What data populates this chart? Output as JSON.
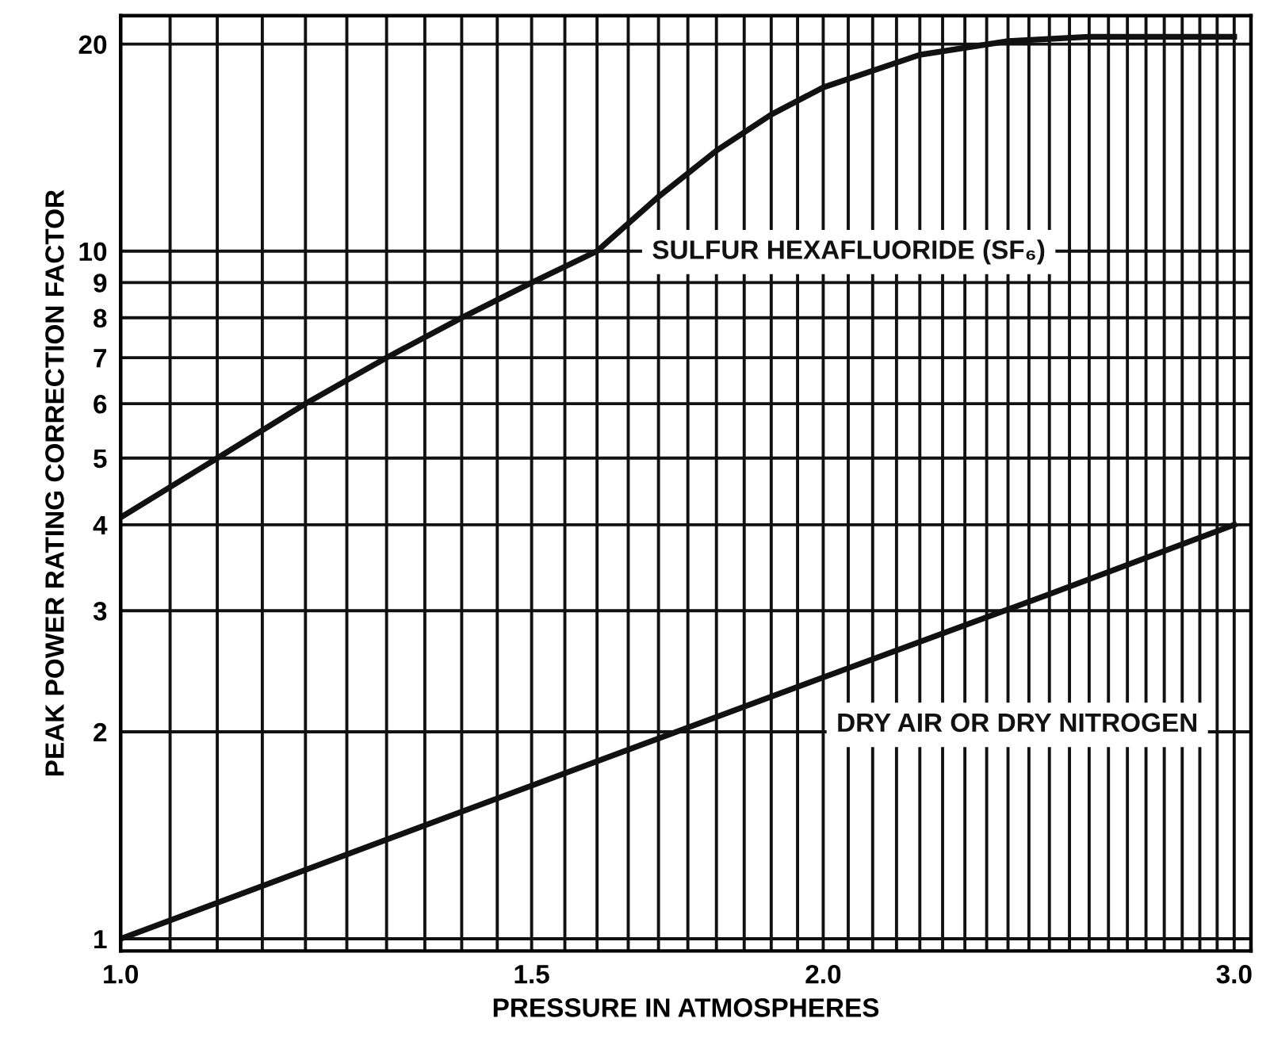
{
  "chart_data": {
    "type": "line",
    "xlabel": "PRESSURE IN ATMOSPHERES",
    "ylabel": "PEAK POWER RATING CORRECTION FACTOR",
    "log": "xy",
    "grid": true,
    "legend": false,
    "marker": "none",
    "line_style": "solid",
    "xlim": [
      1.0,
      3.05
    ],
    "ylim": [
      0.96,
      22
    ],
    "xticks": [
      {
        "value": 1.0,
        "label": "1.0"
      },
      {
        "value": 1.05,
        "label": null
      },
      {
        "value": 1.1,
        "label": null
      },
      {
        "value": 1.15,
        "label": null
      },
      {
        "value": 1.2,
        "label": null
      },
      {
        "value": 1.25,
        "label": null
      },
      {
        "value": 1.3,
        "label": null
      },
      {
        "value": 1.35,
        "label": null
      },
      {
        "value": 1.4,
        "label": null
      },
      {
        "value": 1.45,
        "label": null
      },
      {
        "value": 1.5,
        "label": "1.5"
      },
      {
        "value": 1.55,
        "label": null
      },
      {
        "value": 1.6,
        "label": null
      },
      {
        "value": 1.65,
        "label": null
      },
      {
        "value": 1.7,
        "label": null
      },
      {
        "value": 1.75,
        "label": null
      },
      {
        "value": 1.8,
        "label": null
      },
      {
        "value": 1.85,
        "label": null
      },
      {
        "value": 1.9,
        "label": null
      },
      {
        "value": 1.95,
        "label": null
      },
      {
        "value": 2.0,
        "label": "2.0"
      },
      {
        "value": 2.05,
        "label": null
      },
      {
        "value": 2.1,
        "label": null
      },
      {
        "value": 2.15,
        "label": null
      },
      {
        "value": 2.2,
        "label": null
      },
      {
        "value": 2.25,
        "label": null
      },
      {
        "value": 2.3,
        "label": null
      },
      {
        "value": 2.35,
        "label": null
      },
      {
        "value": 2.4,
        "label": null
      },
      {
        "value": 2.45,
        "label": null
      },
      {
        "value": 2.5,
        "label": null
      },
      {
        "value": 2.55,
        "label": null
      },
      {
        "value": 2.6,
        "label": null
      },
      {
        "value": 2.65,
        "label": null
      },
      {
        "value": 2.7,
        "label": null
      },
      {
        "value": 2.75,
        "label": null
      },
      {
        "value": 2.8,
        "label": null
      },
      {
        "value": 2.85,
        "label": null
      },
      {
        "value": 2.9,
        "label": null
      },
      {
        "value": 2.95,
        "label": null
      },
      {
        "value": 3.0,
        "label": "3.0"
      }
    ],
    "yticks": [
      1,
      2,
      3,
      4,
      5,
      6,
      7,
      8,
      9,
      10,
      20
    ],
    "series": [
      {
        "name": "SULFUR HEXAFLUORIDE (SF₆)",
        "color": "#111111",
        "x": [
          1.0,
          1.1,
          1.2,
          1.3,
          1.4,
          1.5,
          1.6,
          1.7,
          1.8,
          1.9,
          2.0,
          2.2,
          2.4,
          2.6,
          2.8,
          3.0
        ],
        "values": [
          4.1,
          5,
          6,
          7,
          8,
          9,
          10,
          12,
          14,
          15.8,
          17.3,
          19.3,
          20.2,
          20.5,
          20.5,
          20.5
        ]
      },
      {
        "name": "DRY AIR OR DRY NITROGEN",
        "color": "#111111",
        "x": [
          1.0,
          1.5,
          2.0,
          2.5,
          3.0
        ],
        "values": [
          1.0,
          1.67,
          2.4,
          3.17,
          4.0
        ]
      }
    ]
  }
}
